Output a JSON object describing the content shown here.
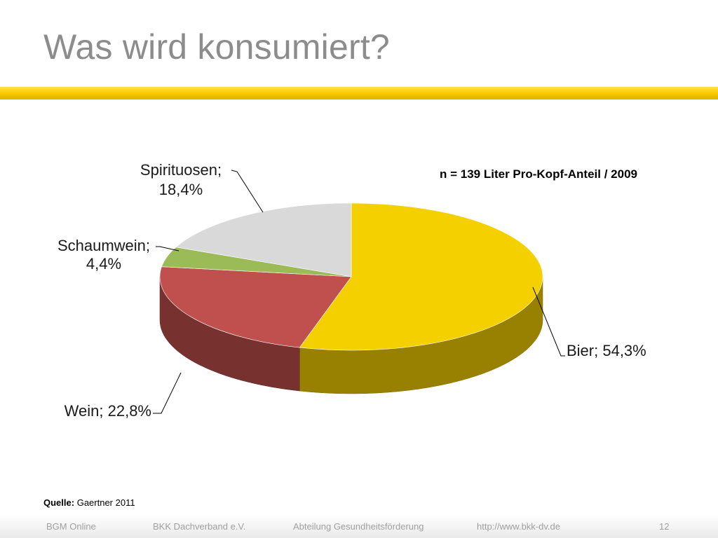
{
  "title": "Was wird konsumiert?",
  "chart_data": {
    "type": "pie",
    "annotation": "n = 139 Liter Pro-Kopf-Anteil / 2009",
    "slices": [
      {
        "label": "Bier",
        "value": 54.3,
        "value_text": "54,3%",
        "color": "#f5d000"
      },
      {
        "label": "Wein",
        "value": 22.8,
        "value_text": "22,8%",
        "color": "#c0504d"
      },
      {
        "label": "Schaumwein",
        "value": 4.4,
        "value_text": "4,4%",
        "color": "#9bbb59"
      },
      {
        "label": "Spirituosen",
        "value": 18.4,
        "value_text": "18,4%",
        "color": "#d9d9d9"
      }
    ]
  },
  "source": {
    "label": "Quelle:",
    "text": "Gaertner 2011"
  },
  "footer": {
    "org": "BGM Online",
    "association": "BKK Dachverband e.V.",
    "department": "Abteilung Gesundheitsförderung",
    "url": "http://www.bkk-dv.de",
    "page": "12"
  }
}
